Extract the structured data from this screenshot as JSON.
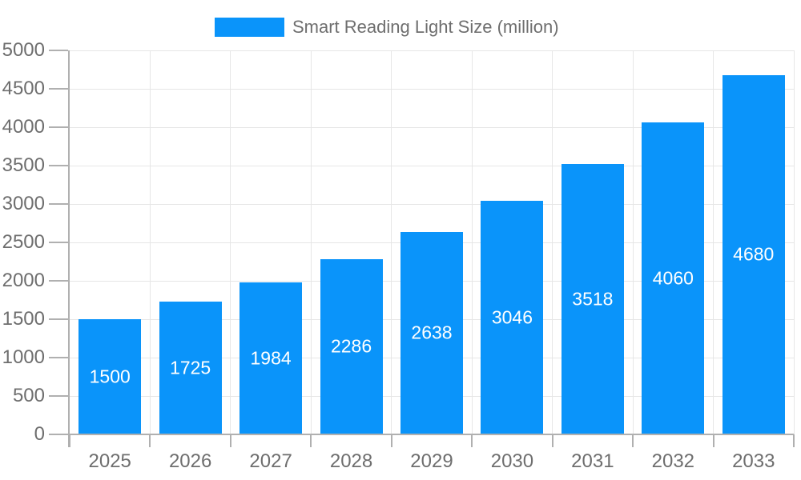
{
  "chart_data": {
    "type": "bar",
    "title": "Smart Reading Light Size (million)",
    "categories": [
      "2025",
      "2026",
      "2027",
      "2028",
      "2029",
      "2030",
      "2031",
      "2032",
      "2033"
    ],
    "values": [
      1500,
      1725,
      1984,
      2286,
      2638,
      3046,
      3518,
      4060,
      4680
    ],
    "xlabel": "",
    "ylabel": "",
    "ylim": [
      0,
      5000
    ],
    "ytick_step": 500,
    "grid": true,
    "legend_position": "top-center",
    "colors": {
      "bar": "#0a94fa",
      "bar_value_label": "#ffffff",
      "axis_text": "#6e6e6e",
      "axis_line": "#b0b0b0",
      "gridline": "#e6e6e6",
      "legend_text": "#6e6e6e",
      "background": "#ffffff"
    }
  }
}
